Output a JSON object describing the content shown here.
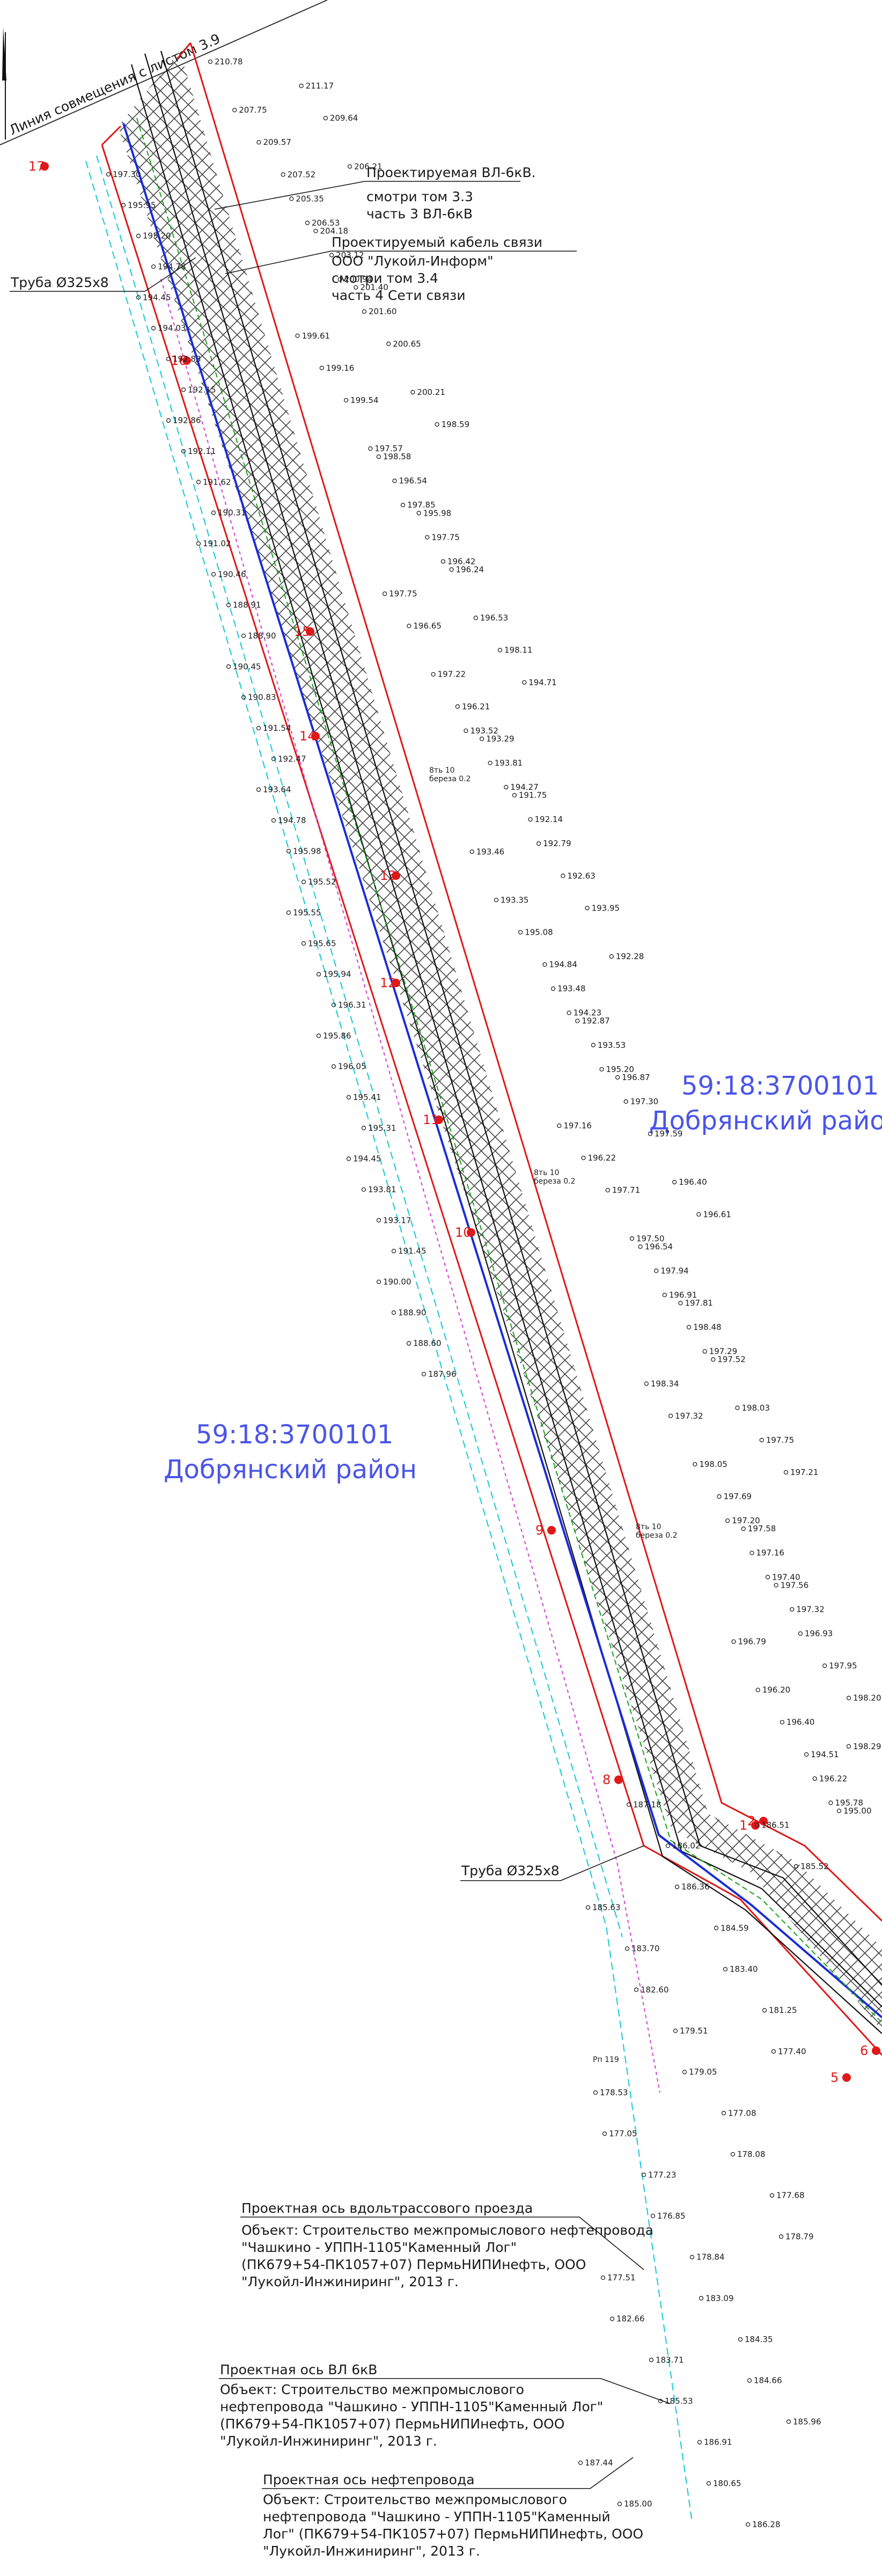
{
  "colors": {
    "corridor": "#e01818",
    "pipe_axis": "#1a2cd8",
    "vl_axis": "#111111",
    "hatch": "#222222",
    "region": "#4b55e8",
    "cyan": "#14c8d8",
    "magenta": "#d23cd2",
    "green": "#19a019"
  },
  "match_line": {
    "label": "Линия совмещения с листом 3.9"
  },
  "regions": [
    {
      "code": "59:18:3700101",
      "name": "Добрянский район"
    },
    {
      "code": "59:18:3700101",
      "name": "Добрянский район"
    }
  ],
  "callouts": {
    "vl_design": [
      "Проектируемая ВЛ-6кВ.",
      "смотри том 3.3",
      "часть 3 ВЛ-6кВ"
    ],
    "comm_cable": [
      "Проектируемый кабель связи",
      "ООО \"Лукойл-Информ\"",
      "смотри том 3.4",
      "часть 4 Сети связи"
    ],
    "pipe_top": "Труба Ø325х8",
    "pipe_bottom": "Труба Ø325х8",
    "rp": "Рп 119",
    "axis_road": [
      "Проектная ось вдольтрассового проезда",
      "Объект: Строительство межпромыслового нефтепровода",
      "\"Чашкино - УППН-1105\"Каменный Лог\"",
      "(ПК679+54-ПК1057+07) ПермьНИПИнефть, ООО",
      "\"Лукойл-Инжиниринг\", 2013 г."
    ],
    "axis_vl": [
      "Проектная ось ВЛ 6кВ",
      "Объект: Строительство межпромыслового",
      "нефтепровода \"Чашкино - УППН-1105\"Каменный Лог\"",
      "(ПК679+54-ПК1057+07) ПермьНИПИнефть, ООО",
      "\"Лукойл-Инжиниринг\", 2013 г."
    ],
    "axis_pipe": [
      "Проектная ось нефтепровода",
      "Объект: Строительство межпромыслового",
      "нефтепровода \"Чашкино - УППН-1105\"Каменный",
      "Лог\" (ПК679+54-ПК1057+07) ПермьНИПИнефть, ООО",
      "\"Лукойл-Инжиниринг\", 2013 г."
    ]
  },
  "pk_labels": [
    "17",
    "16",
    "15",
    "14",
    "13",
    "12",
    "11",
    "10",
    "9",
    "8",
    "1",
    "2",
    "6",
    "5"
  ],
  "tree_labels": [
    "8ть 10",
    "береза 0.2",
    "8ть 10",
    "береза 0.2",
    "8ть 10",
    "береза 0.2"
  ],
  "elevations_right": [
    "210.78",
    "211.17",
    "207.75",
    "209.64",
    "209.57",
    "206.21",
    "207.52",
    "205.35",
    "206.53",
    "204.18",
    "203.12",
    "200.94",
    "201.40",
    "201.60",
    "199.61",
    "200.65",
    "199.16",
    "200.21",
    "199.54",
    "198.59",
    "197.57",
    "198.58",
    "196.54",
    "197.85",
    "195.98",
    "197.75",
    "196.42",
    "196.24",
    "197.75",
    "196.53",
    "196.65",
    "198.11",
    "197.22",
    "194.71",
    "196.21",
    "193.52",
    "193.29",
    "193.81",
    "194.27",
    "191.75",
    "192.14",
    "192.79",
    "193.46",
    "192.63",
    "193.35",
    "193.95",
    "195.08",
    "192.28",
    "194.84",
    "193.48",
    "194.23",
    "192.87",
    "193.53",
    "195.20",
    "196.87",
    "197.30",
    "197.16",
    "197.59",
    "196.22",
    "196.40",
    "197.71",
    "196.61",
    "197.50",
    "196.54",
    "197.94",
    "196.91",
    "197.81",
    "198.48",
    "197.29",
    "197.52",
    "198.34",
    "198.03",
    "197.32",
    "197.75",
    "198.05",
    "197.21",
    "197.69",
    "197.20",
    "197.58",
    "197.16",
    "197.40",
    "197.56",
    "197.32",
    "196.93",
    "196.79",
    "197.95",
    "196.20",
    "198.20",
    "196.40",
    "198.29",
    "194.51",
    "196.22",
    "195.78",
    "195.00"
  ],
  "elevations_left": [
    "197.30",
    "195.95",
    "195.20",
    "194.78",
    "194.45",
    "194.03",
    "192.83",
    "192.15",
    "192.86",
    "192.11",
    "191.62",
    "190.31",
    "191.02",
    "190.46",
    "188.91",
    "188.90",
    "190.45",
    "190.83",
    "191.54",
    "192.47",
    "193.64",
    "194.78",
    "195.98",
    "195.52",
    "195.55",
    "195.65",
    "195.94",
    "196.31",
    "195.86",
    "196.05",
    "195.41",
    "195.31",
    "194.45",
    "193.81",
    "193.17",
    "191.45",
    "190.00",
    "188.90",
    "188.60",
    "187.96",
    "187.18",
    "186.51",
    "186.02",
    "185.52",
    "186.36",
    "185.63",
    "184.59",
    "183.70",
    "183.40",
    "182.60",
    "181.25",
    "179.51",
    "177.40",
    "179.05",
    "178.53",
    "177.08",
    "177.05",
    "178.08",
    "177.23",
    "177.68",
    "176.85",
    "178.79",
    "178.84",
    "177.51",
    "183.09",
    "182.66",
    "184.35",
    "183.71",
    "184.66",
    "185.53",
    "185.96",
    "186.91",
    "187.44",
    "180.65",
    "185.00",
    "186.28"
  ]
}
